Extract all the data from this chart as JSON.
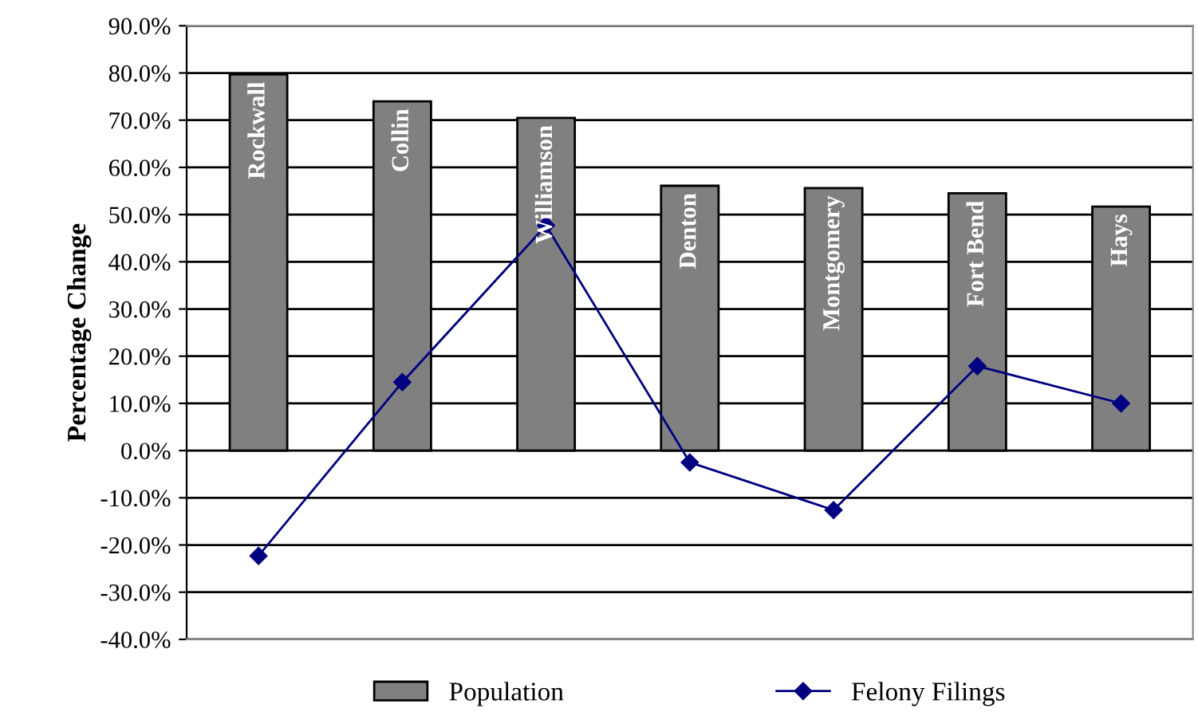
{
  "chart_data": {
    "type": "bar",
    "ylabel": "Percentage Change",
    "categories": [
      "Rockwall",
      "Collin",
      "Williamson",
      "Denton",
      "Montgomery",
      "Fort Bend",
      "Hays"
    ],
    "series": [
      {
        "name": "Population",
        "color": "#808080",
        "values": [
          79.7,
          74.0,
          70.5,
          56.1,
          55.6,
          54.5,
          51.7
        ]
      },
      {
        "name": "Felony Filings",
        "type": "line",
        "color": "#000080",
        "marker": "diamond",
        "line_style": "solid",
        "values": [
          -22.3,
          14.5,
          47.7,
          -2.5,
          -12.6,
          17.9,
          10.0
        ]
      }
    ],
    "ylim": [
      -40,
      90
    ],
    "yticks": [
      {
        "value": -40,
        "label": "-40.0%"
      },
      {
        "value": -30,
        "label": "-30.0%"
      },
      {
        "value": -20,
        "label": "-20.0%"
      },
      {
        "value": -10,
        "label": "-10.0%"
      },
      {
        "value": 0,
        "label": "0.0%"
      },
      {
        "value": 10,
        "label": "10.0%"
      },
      {
        "value": 20,
        "label": "20.0%"
      },
      {
        "value": 30,
        "label": "30.0%"
      },
      {
        "value": 40,
        "label": "40.0%"
      },
      {
        "value": 50,
        "label": "50.0%"
      },
      {
        "value": 60,
        "label": "60.0%"
      },
      {
        "value": 70,
        "label": "70.0%"
      },
      {
        "value": 80,
        "label": "80.0%"
      },
      {
        "value": 90,
        "label": "90.0%"
      }
    ],
    "grid": "y",
    "legend": "bottom"
  }
}
